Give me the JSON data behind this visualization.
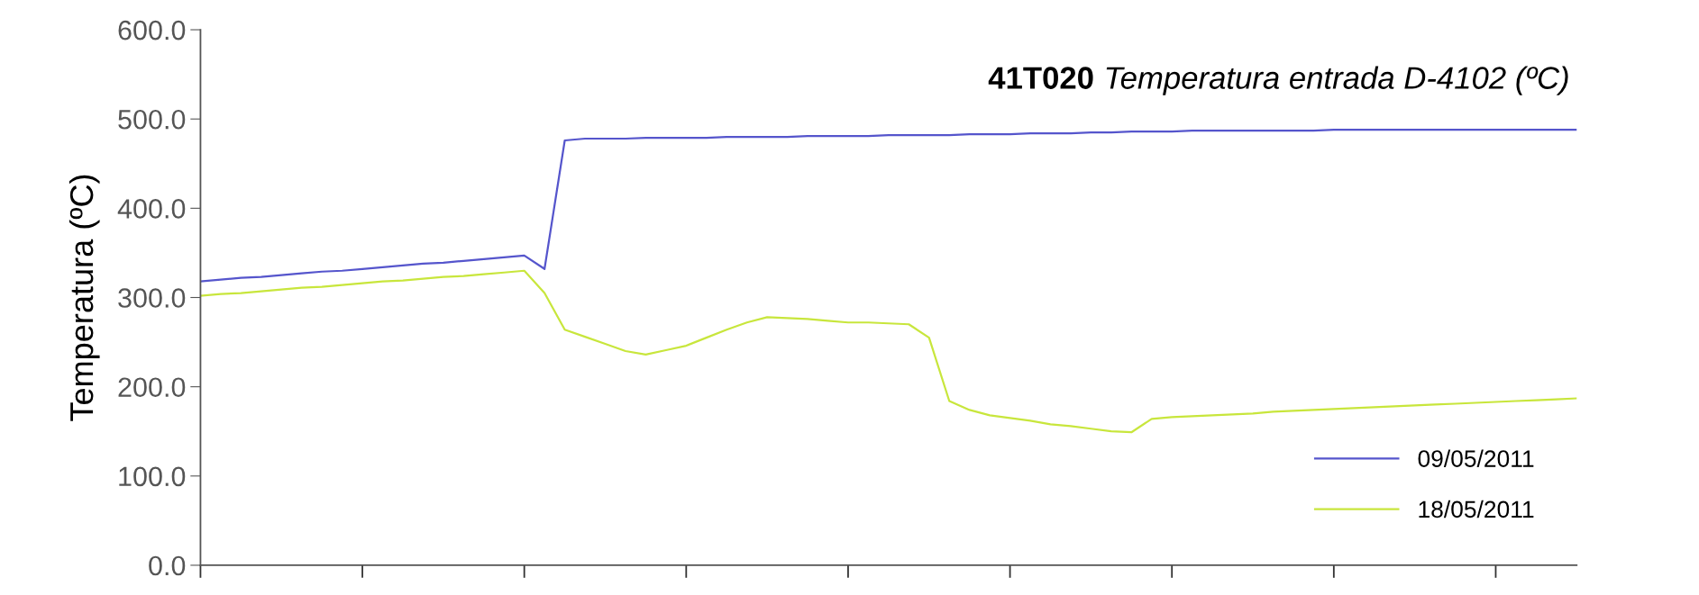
{
  "chart_data": {
    "type": "line",
    "title": "41T020",
    "subtitle": "Temperatura entrada D-4102 (ºC)",
    "ylabel": "Temperatura (ºC)",
    "categories": [
      null,
      null,
      null,
      null,
      null,
      null,
      null,
      null,
      null,
      null,
      null,
      null,
      null,
      null,
      null,
      null,
      null,
      null,
      null,
      null,
      null,
      null,
      null,
      null,
      null,
      null,
      null,
      null,
      null,
      null,
      null,
      null,
      null,
      null,
      null,
      null,
      null,
      null,
      null,
      null,
      null,
      null,
      null,
      null,
      null,
      null,
      null,
      null,
      null,
      null,
      null,
      null,
      null,
      null,
      null,
      null,
      null,
      null,
      null,
      null,
      null,
      null,
      null,
      null,
      null,
      null,
      null,
      null,
      null
    ],
    "ylim": [
      0,
      600
    ],
    "yticks": [
      {
        "value": 0,
        "label": "0.0"
      },
      {
        "value": 100,
        "label": "100.0"
      },
      {
        "value": 200,
        "label": "200.0"
      },
      {
        "value": 300,
        "label": "300.0"
      },
      {
        "value": 400,
        "label": "400.0"
      },
      {
        "value": 500,
        "label": "500.0"
      },
      {
        "value": 600,
        "label": "600.0"
      }
    ],
    "tick_labels": "y",
    "grid": false,
    "legend": "bottom right",
    "series": [
      {
        "name": "09/05/2011",
        "color": "#5555cc",
        "values": [
          318,
          320,
          322,
          323,
          325,
          327,
          329,
          330,
          332,
          334,
          336,
          338,
          339,
          341,
          343,
          345,
          347,
          332,
          476,
          478,
          478,
          478,
          479,
          479,
          479,
          479,
          480,
          480,
          480,
          480,
          481,
          481,
          481,
          481,
          482,
          482,
          482,
          482,
          483,
          483,
          483,
          484,
          484,
          484,
          485,
          485,
          486,
          486,
          486,
          487,
          487,
          487,
          487,
          487,
          487,
          487,
          488,
          488,
          488,
          488,
          488,
          488,
          488,
          488,
          488,
          488,
          488,
          488,
          488
        ]
      },
      {
        "name": "18/05/2011",
        "color": "#c8e63c",
        "values": [
          302,
          304,
          305,
          307,
          309,
          311,
          312,
          314,
          316,
          318,
          319,
          321,
          323,
          324,
          326,
          328,
          330,
          305,
          264,
          256,
          248,
          240,
          236,
          241,
          246,
          255,
          264,
          272,
          278,
          277,
          276,
          274,
          272,
          272,
          271,
          270,
          255,
          184,
          174,
          168,
          165,
          162,
          158,
          156,
          153,
          150,
          149,
          164,
          166,
          167,
          168,
          169,
          170,
          172,
          173,
          174,
          175,
          176,
          177,
          178,
          179,
          180,
          181,
          182,
          183,
          184,
          185,
          186,
          187
        ]
      }
    ]
  }
}
